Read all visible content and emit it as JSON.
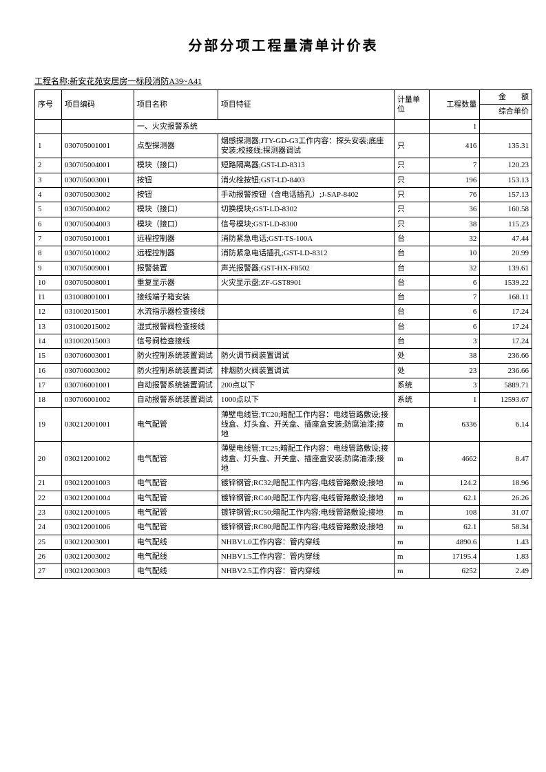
{
  "title": "分部分项工程量清单计价表",
  "projectLabel": "工程名称:新安花苑安居房一标段消防A39~A41",
  "headers": {
    "seq": "序号",
    "code": "项目编码",
    "name": "项目名称",
    "feature": "项目特征",
    "unit": "计量单位",
    "qty": "工程数量",
    "amount": "金　　额",
    "unitPrice": "综合单价"
  },
  "sectionTitle": "一、火灾报警系统",
  "sectionQty": "1",
  "columns": {
    "widths": {
      "seq": 32,
      "code": 86,
      "name": 100,
      "feature": 210,
      "unit": 42,
      "qty": 60,
      "price": 62
    },
    "alignment": {
      "seq": "left",
      "code": "left",
      "name": "left",
      "feature": "left",
      "unit": "left",
      "qty": "right",
      "price": "right"
    }
  },
  "style": {
    "title_fontsize": 20,
    "body_fontsize": 11,
    "project_fontsize": 12,
    "border_color": "#000000",
    "background_color": "#ffffff",
    "line_height": 1.3
  },
  "rows": [
    {
      "seq": "1",
      "code": "030705001001",
      "name": "点型探测器",
      "feature": "烟感探测器;JTY-GD-G3工作内容：探头安装;底座安装;校接线;探测器调试",
      "unit": "只",
      "qty": "416",
      "price": "135.31"
    },
    {
      "seq": "2",
      "code": "030705004001",
      "name": "模块（接口）",
      "feature": "短路隔离器;GST-LD-8313",
      "unit": "只",
      "qty": "7",
      "price": "120.23"
    },
    {
      "seq": "3",
      "code": "030705003001",
      "name": "按钮",
      "feature": "消火栓按钮;GST-LD-8403",
      "unit": "只",
      "qty": "196",
      "price": "153.13"
    },
    {
      "seq": "4",
      "code": "030705003002",
      "name": "按钮",
      "feature": "手动报警按钮（含电话插孔）;J-SAP-8402",
      "unit": "只",
      "qty": "76",
      "price": "157.13"
    },
    {
      "seq": "5",
      "code": "030705004002",
      "name": "模块（接口）",
      "feature": "切换模块;GST-LD-8302",
      "unit": "只",
      "qty": "36",
      "price": "160.58"
    },
    {
      "seq": "6",
      "code": "030705004003",
      "name": "模块（接口）",
      "feature": "信号模块;GST-LD-8300",
      "unit": "只",
      "qty": "38",
      "price": "115.23"
    },
    {
      "seq": "7",
      "code": "030705010001",
      "name": "远程控制器",
      "feature": "消防紧急电话;GST-TS-100A",
      "unit": "台",
      "qty": "32",
      "price": "47.44"
    },
    {
      "seq": "8",
      "code": "030705010002",
      "name": "远程控制器",
      "feature": "消防紧急电话插孔;GST-LD-8312",
      "unit": "台",
      "qty": "10",
      "price": "20.99"
    },
    {
      "seq": "9",
      "code": "030705009001",
      "name": "报警装置",
      "feature": "声光报警器;GST-HX-F8502",
      "unit": "台",
      "qty": "32",
      "price": "139.61"
    },
    {
      "seq": "10",
      "code": "030705008001",
      "name": "重复显示器",
      "feature": "火灾显示盘;ZF-GST8901",
      "unit": "台",
      "qty": "6",
      "price": "1539.22"
    },
    {
      "seq": "11",
      "code": "031008001001",
      "name": "接线端子箱安装",
      "feature": "",
      "unit": "台",
      "qty": "7",
      "price": "168.11"
    },
    {
      "seq": "12",
      "code": "031002015001",
      "name": "水流指示器检查接线",
      "feature": "",
      "unit": "台",
      "qty": "6",
      "price": "17.24"
    },
    {
      "seq": "13",
      "code": "031002015002",
      "name": "湿式报警阀检查接线",
      "feature": "",
      "unit": "台",
      "qty": "6",
      "price": "17.24"
    },
    {
      "seq": "14",
      "code": "031002015003",
      "name": "信号阀检查接线",
      "feature": "",
      "unit": "台",
      "qty": "3",
      "price": "17.24"
    },
    {
      "seq": "15",
      "code": "030706003001",
      "name": "防火控制系统装置调试",
      "feature": "防火调节阀装置调试",
      "unit": "处",
      "qty": "38",
      "price": "236.66"
    },
    {
      "seq": "16",
      "code": "030706003002",
      "name": "防火控制系统装置调试",
      "feature": "排烟防火阀装置调试",
      "unit": "处",
      "qty": "23",
      "price": "236.66"
    },
    {
      "seq": "17",
      "code": "030706001001",
      "name": "自动报警系统装置调试",
      "feature": "200点以下",
      "unit": "系统",
      "qty": "3",
      "price": "5889.71"
    },
    {
      "seq": "18",
      "code": "030706001002",
      "name": "自动报警系统装置调试",
      "feature": "1000点以下",
      "unit": "系统",
      "qty": "1",
      "price": "12593.67"
    },
    {
      "seq": "19",
      "code": "030212001001",
      "name": "电气配管",
      "feature": "薄壁电线管;TC20;暗配工作内容：电线管路敷设;接线盒、灯头盒、开关盒、插座盒安装;防腐油漆;接地",
      "unit": "m",
      "qty": "6336",
      "price": "6.14"
    },
    {
      "seq": "20",
      "code": "030212001002",
      "name": "电气配管",
      "feature": "薄壁电线管;TC25;暗配工作内容：电线管路敷设;接线盒、灯头盒、开关盒、插座盒安装;防腐油漆;接地",
      "unit": "m",
      "qty": "4662",
      "price": "8.47"
    },
    {
      "seq": "21",
      "code": "030212001003",
      "name": "电气配管",
      "feature": "镀锌钢管;RC32;暗配工作内容;电线管路敷设;接地",
      "unit": "m",
      "qty": "124.2",
      "price": "18.96"
    },
    {
      "seq": "22",
      "code": "030212001004",
      "name": "电气配管",
      "feature": "镀锌钢管;RC40;暗配工作内容;电线管路敷设;接地",
      "unit": "m",
      "qty": "62.1",
      "price": "26.26"
    },
    {
      "seq": "23",
      "code": "030212001005",
      "name": "电气配管",
      "feature": "镀锌钢管;RC50;暗配工作内容;电线管路敷设;接地",
      "unit": "m",
      "qty": "108",
      "price": "31.07"
    },
    {
      "seq": "24",
      "code": "030212001006",
      "name": "电气配管",
      "feature": "镀锌钢管;RC80;暗配工作内容;电线管路敷设;接地",
      "unit": "m",
      "qty": "62.1",
      "price": "58.34"
    },
    {
      "seq": "25",
      "code": "030212003001",
      "name": "电气配线",
      "feature": "NHBV1.0工作内容：管内穿线",
      "unit": "m",
      "qty": "4890.6",
      "price": "1.43"
    },
    {
      "seq": "26",
      "code": "030212003002",
      "name": "电气配线",
      "feature": "NHBV1.5工作内容：管内穿线",
      "unit": "m",
      "qty": "17195.4",
      "price": "1.83"
    },
    {
      "seq": "27",
      "code": "030212003003",
      "name": "电气配线",
      "feature": "NHBV2.5工作内容：管内穿线",
      "unit": "m",
      "qty": "6252",
      "price": "2.49"
    }
  ]
}
